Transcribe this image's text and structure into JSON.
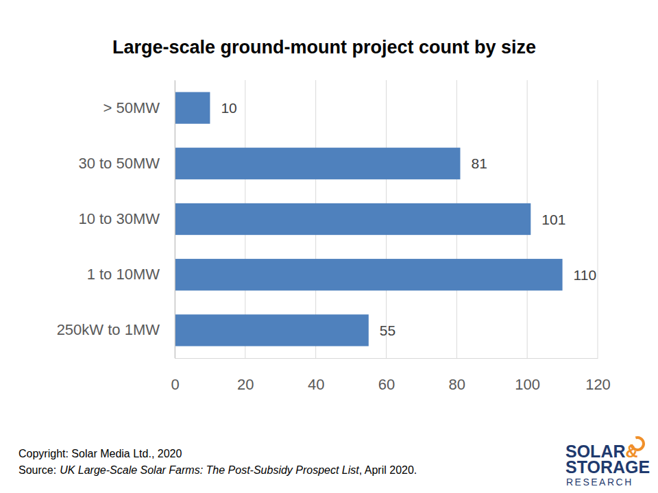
{
  "chart_data": {
    "type": "bar",
    "orientation": "horizontal",
    "title": "Large-scale ground-mount project count by size",
    "categories": [
      "> 50MW",
      "30 to 50MW",
      "10 to 30MW",
      "1 to 10MW",
      "250kW to 1MW"
    ],
    "values": [
      10,
      81,
      101,
      110,
      55
    ],
    "color": "#4f81bd",
    "xlim": [
      0,
      120
    ],
    "xticks": [
      0,
      20,
      40,
      60,
      80,
      100,
      120
    ],
    "grid": true,
    "data_labels": true,
    "footer": {
      "copyright": "Copyright: Solar Media Ltd., 2020",
      "source_label": "Source:",
      "source_title": "UK Large-Scale Solar Farms: The Post-Subsidy Prospect List",
      "source_date": ", April 2020."
    },
    "logo": [
      "SOLAR",
      "&",
      "STORAGE",
      "RESEARCH"
    ]
  }
}
